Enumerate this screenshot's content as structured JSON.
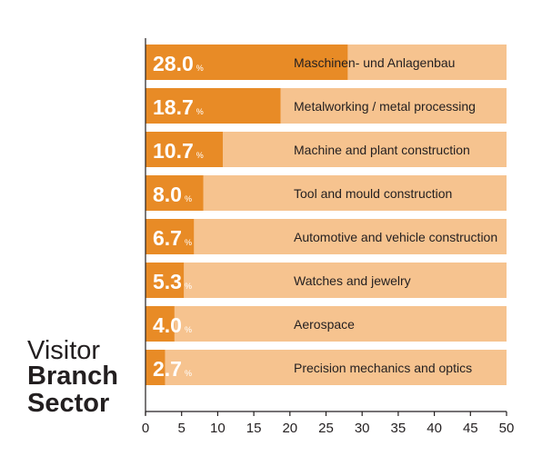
{
  "chart_data": {
    "type": "bar",
    "orientation": "horizontal",
    "title_lines": [
      "Visitor",
      "Branch",
      "Sector"
    ],
    "categories": [
      "Maschinen- und Anlagenbau",
      "Metalworking / metal processing",
      "Machine and plant construction",
      "Tool and mould construction",
      "Automotive and vehicle construction",
      "Watches and jewelry",
      "Aerospace",
      "Precision mechanics and optics"
    ],
    "values": [
      28.0,
      18.7,
      10.7,
      8.0,
      6.7,
      5.3,
      4.0,
      2.7
    ],
    "value_labels": [
      "28.0",
      "18.7",
      "10.7",
      "8.0",
      "6.7",
      "5.3",
      "4.0",
      "2.7"
    ],
    "unit": "%",
    "xlim": [
      0,
      50
    ],
    "xticks": [
      "0",
      "5",
      "10",
      "15",
      "20",
      "25",
      "30",
      "35",
      "40",
      "45",
      "50"
    ],
    "grid": false,
    "colors": {
      "bar": "#e88b26",
      "track": "#f6c38f",
      "value_text": "#ffffff",
      "category_text": "#231f20",
      "axis": "#231f20"
    }
  }
}
